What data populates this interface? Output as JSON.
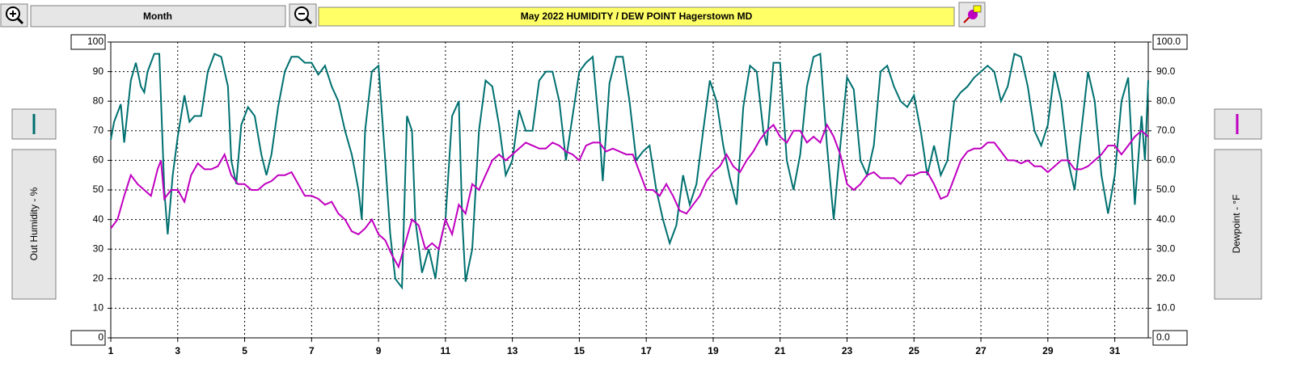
{
  "toolbar": {
    "period": "Month"
  },
  "chart_data": {
    "type": "line",
    "title": "May  2022   HUMIDITY / DEW POINT  Hagerstown MD",
    "ylabel": "Out Humidity - %",
    "y2label": "Dewpoint - °F",
    "xlim": [
      1,
      32
    ],
    "xticks": [
      1,
      3,
      5,
      7,
      9,
      11,
      13,
      15,
      17,
      19,
      21,
      23,
      25,
      27,
      29,
      31
    ],
    "ylim": [
      0,
      100
    ],
    "yticks": [
      0,
      10,
      20,
      30,
      40,
      50,
      60,
      70,
      80,
      90,
      100
    ],
    "y2lim": [
      0,
      100
    ],
    "y2ticks": [
      {
        "value": 0,
        "label": "0.0"
      },
      {
        "value": 10,
        "label": "10.0"
      },
      {
        "value": 20,
        "label": "20.0"
      },
      {
        "value": 30,
        "label": "30.0"
      },
      {
        "value": 40,
        "label": "40.0"
      },
      {
        "value": 50,
        "label": "50.0"
      },
      {
        "value": 60,
        "label": "60.0"
      },
      {
        "value": 70,
        "label": "70.0"
      },
      {
        "value": 80,
        "label": "80.0"
      },
      {
        "value": 90,
        "label": "90.0"
      },
      {
        "value": 100,
        "label": "100.0"
      }
    ],
    "grid": true,
    "series": [
      {
        "color": "#007070",
        "x": [
          1.0,
          1.1,
          1.3,
          1.4,
          1.6,
          1.75,
          1.9,
          2.0,
          2.1,
          2.3,
          2.45,
          2.6,
          2.7,
          2.85,
          3.0,
          3.2,
          3.35,
          3.5,
          3.7,
          3.9,
          4.1,
          4.3,
          4.5,
          4.6,
          4.75,
          4.9,
          5.1,
          5.3,
          5.5,
          5.65,
          5.8,
          6.0,
          6.2,
          6.4,
          6.6,
          6.8,
          7.0,
          7.2,
          7.4,
          7.6,
          7.8,
          8.0,
          8.2,
          8.4,
          8.5,
          8.6,
          8.8,
          9.0,
          9.2,
          9.35,
          9.5,
          9.7,
          9.85,
          10.0,
          10.1,
          10.3,
          10.5,
          10.7,
          10.8,
          11.0,
          11.2,
          11.4,
          11.5,
          11.6,
          11.8,
          12.0,
          12.2,
          12.4,
          12.6,
          12.8,
          13.0,
          13.2,
          13.4,
          13.6,
          13.8,
          14.0,
          14.2,
          14.4,
          14.6,
          14.8,
          15.0,
          15.2,
          15.4,
          15.6,
          15.7,
          15.9,
          16.1,
          16.3,
          16.5,
          16.7,
          16.9,
          17.1,
          17.3,
          17.5,
          17.7,
          17.9,
          18.1,
          18.3,
          18.5,
          18.7,
          18.9,
          19.1,
          19.3,
          19.5,
          19.7,
          19.9,
          20.1,
          20.3,
          20.5,
          20.6,
          20.8,
          21.0,
          21.2,
          21.4,
          21.6,
          21.8,
          22.0,
          22.2,
          22.4,
          22.6,
          22.8,
          23.0,
          23.2,
          23.4,
          23.6,
          23.8,
          24.0,
          24.2,
          24.4,
          24.6,
          24.8,
          25.0,
          25.2,
          25.4,
          25.6,
          25.8,
          26.0,
          26.2,
          26.4,
          26.6,
          26.8,
          27.0,
          27.2,
          27.4,
          27.6,
          27.8,
          28.0,
          28.2,
          28.4,
          28.6,
          28.8,
          29.0,
          29.2,
          29.4,
          29.6,
          29.8,
          30.0,
          30.2,
          30.4,
          30.6,
          30.8,
          31.0,
          31.2,
          31.4,
          31.6,
          31.8,
          31.9,
          32.0
        ],
        "values": [
          67,
          73,
          79,
          66,
          87,
          93,
          85,
          83,
          90,
          96,
          96,
          50,
          35,
          55,
          68,
          82,
          73,
          75,
          75,
          90,
          96,
          95,
          85,
          60,
          52,
          72,
          78,
          75,
          62,
          55,
          62,
          78,
          90,
          95,
          95,
          93,
          93,
          89,
          92,
          85,
          80,
          70,
          62,
          50,
          40,
          70,
          90,
          92,
          60,
          35,
          20,
          17,
          75,
          70,
          40,
          22,
          30,
          20,
          30,
          40,
          75,
          80,
          40,
          19,
          30,
          70,
          87,
          85,
          72,
          55,
          60,
          77,
          70,
          70,
          87,
          90,
          90,
          80,
          60,
          75,
          90,
          93,
          95,
          70,
          53,
          86,
          95,
          95,
          80,
          60,
          63,
          65,
          50,
          40,
          32,
          38,
          55,
          45,
          52,
          70,
          87,
          80,
          65,
          54,
          45,
          78,
          92,
          90,
          70,
          65,
          93,
          93,
          60,
          50,
          62,
          85,
          95,
          96,
          65,
          40,
          65,
          88,
          84,
          60,
          55,
          65,
          90,
          92,
          85,
          80,
          78,
          82,
          70,
          55,
          65,
          55,
          60,
          80,
          83,
          85,
          88,
          90,
          92,
          90,
          80,
          85,
          96,
          95,
          85,
          70,
          65,
          72,
          90,
          80,
          60,
          50,
          70,
          90,
          80,
          55,
          42,
          55,
          80,
          88,
          45,
          75,
          60,
          87
        ]
      },
      {
        "color": "#c000c0",
        "axis": "y2",
        "x": [
          1.0,
          1.2,
          1.4,
          1.6,
          1.8,
          2.0,
          2.2,
          2.4,
          2.5,
          2.6,
          2.8,
          3.0,
          3.2,
          3.4,
          3.6,
          3.8,
          4.0,
          4.2,
          4.4,
          4.6,
          4.8,
          5.0,
          5.2,
          5.4,
          5.6,
          5.8,
          6.0,
          6.2,
          6.4,
          6.6,
          6.8,
          7.0,
          7.2,
          7.4,
          7.6,
          7.8,
          8.0,
          8.2,
          8.4,
          8.6,
          8.8,
          9.0,
          9.2,
          9.4,
          9.6,
          9.8,
          10.0,
          10.2,
          10.4,
          10.6,
          10.8,
          11.0,
          11.2,
          11.4,
          11.6,
          11.8,
          12.0,
          12.2,
          12.4,
          12.6,
          12.8,
          13.0,
          13.2,
          13.4,
          13.6,
          13.8,
          14.0,
          14.2,
          14.4,
          14.6,
          14.8,
          15.0,
          15.2,
          15.4,
          15.6,
          15.8,
          16.0,
          16.2,
          16.4,
          16.6,
          16.8,
          17.0,
          17.2,
          17.4,
          17.6,
          17.8,
          18.0,
          18.2,
          18.4,
          18.6,
          18.8,
          19.0,
          19.2,
          19.4,
          19.6,
          19.8,
          20.0,
          20.2,
          20.4,
          20.6,
          20.8,
          21.0,
          21.2,
          21.4,
          21.6,
          21.8,
          22.0,
          22.2,
          22.4,
          22.6,
          22.8,
          23.0,
          23.2,
          23.4,
          23.6,
          23.8,
          24.0,
          24.2,
          24.4,
          24.6,
          24.8,
          25.0,
          25.2,
          25.4,
          25.6,
          25.8,
          26.0,
          26.2,
          26.4,
          26.6,
          26.8,
          27.0,
          27.2,
          27.4,
          27.6,
          27.8,
          28.0,
          28.2,
          28.4,
          28.6,
          28.8,
          29.0,
          29.2,
          29.4,
          29.6,
          29.8,
          30.0,
          30.2,
          30.4,
          30.6,
          30.8,
          31.0,
          31.2,
          31.4,
          31.6,
          31.8,
          32.0
        ],
        "values": [
          37,
          40,
          48,
          55,
          52,
          50,
          48,
          57,
          60,
          47,
          50,
          50,
          46,
          55,
          59,
          57,
          57,
          58,
          62,
          55,
          52,
          52,
          50,
          50,
          52,
          53,
          55,
          55,
          56,
          52,
          48,
          48,
          47,
          45,
          46,
          42,
          40,
          36,
          35,
          37,
          40,
          35,
          33,
          28,
          24,
          32,
          40,
          38,
          30,
          32,
          30,
          40,
          35,
          45,
          42,
          52,
          50,
          55,
          60,
          62,
          60,
          62,
          64,
          66,
          65,
          64,
          64,
          66,
          65,
          63,
          62,
          60,
          65,
          66,
          66,
          63,
          64,
          63,
          62,
          62,
          56,
          50,
          50,
          48,
          52,
          48,
          43,
          42,
          45,
          48,
          53,
          56,
          58,
          62,
          58,
          56,
          60,
          63,
          67,
          70,
          72,
          68,
          66,
          70,
          70,
          66,
          68,
          66,
          72,
          68,
          62,
          52,
          50,
          52,
          55,
          56,
          54,
          54,
          54,
          52,
          55,
          55,
          56,
          56,
          52,
          47,
          48,
          54,
          60,
          63,
          64,
          64,
          66,
          66,
          63,
          60,
          60,
          59,
          60,
          58,
          58,
          56,
          58,
          60,
          60,
          57,
          57,
          58,
          60,
          62,
          65,
          65,
          62,
          65,
          68,
          70,
          68
        ]
      }
    ]
  }
}
